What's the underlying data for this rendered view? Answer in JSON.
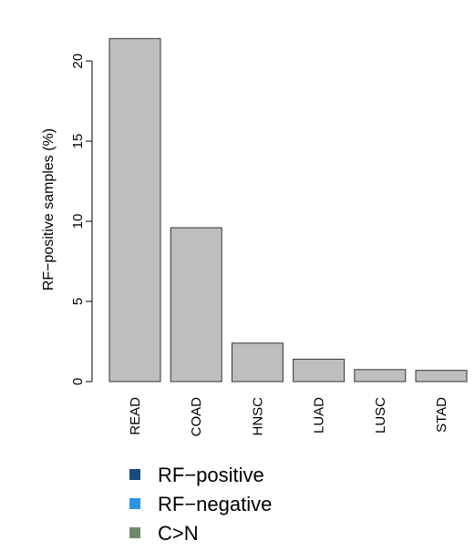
{
  "chart_data": {
    "type": "bar",
    "categories": [
      "READ",
      "COAD",
      "HNSC",
      "LUAD",
      "LUSC",
      "STAD"
    ],
    "values": [
      21.4,
      9.6,
      2.4,
      1.4,
      0.75,
      0.7
    ],
    "title": "",
    "xlabel": "",
    "ylabel": "RF−positive samples (%)",
    "ylim": [
      0,
      20
    ],
    "yticks": [
      0,
      5,
      10,
      15,
      20
    ],
    "ytick_labels": [
      "0",
      "5",
      "10",
      "15",
      "20"
    ],
    "bar_color": "#bebebe",
    "bar_border": "#333333",
    "grid": false,
    "legend": {
      "placement": "bottom-left",
      "entries": [
        {
          "label": "RF−positive",
          "color": "#174a7e"
        },
        {
          "label": "RF−negative",
          "color": "#2b94e4"
        },
        {
          "label": "C>N",
          "color": "#6e8a6e"
        }
      ]
    }
  }
}
